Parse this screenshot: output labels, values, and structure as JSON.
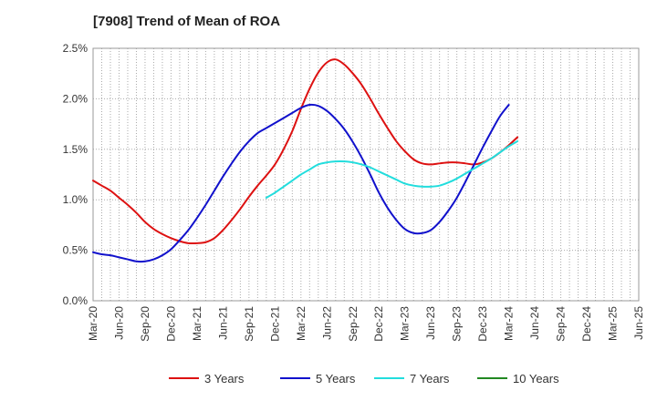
{
  "chart_data": {
    "type": "line",
    "title": "[7908]  Trend of Mean of ROA",
    "xlabel": "",
    "ylabel": "",
    "ylim": [
      0,
      2.5
    ],
    "y_ticks": [
      "0.0%",
      "0.5%",
      "1.0%",
      "1.5%",
      "2.0%",
      "2.5%"
    ],
    "x_tick_labels": [
      "Mar-20",
      "Jun-20",
      "Sep-20",
      "Dec-20",
      "Mar-21",
      "Jun-21",
      "Sep-21",
      "Dec-21",
      "Mar-22",
      "Jun-22",
      "Sep-22",
      "Dec-22",
      "Mar-23",
      "Jun-23",
      "Sep-23",
      "Dec-23",
      "Mar-24",
      "Jun-24",
      "Sep-24",
      "Dec-24",
      "Mar-25",
      "Jun-25"
    ],
    "grid": true,
    "legend_position": "bottom",
    "series": [
      {
        "name": "3 Years",
        "color": "#dd1111",
        "start_index": 0,
        "values": [
          1.19,
          1.14,
          1.09,
          1.02,
          0.95,
          0.87,
          0.78,
          0.71,
          0.66,
          0.62,
          0.59,
          0.57,
          0.57,
          0.58,
          0.62,
          0.7,
          0.8,
          0.91,
          1.03,
          1.14,
          1.24,
          1.35,
          1.5,
          1.68,
          1.9,
          2.1,
          2.26,
          2.36,
          2.39,
          2.34,
          2.25,
          2.14,
          2.0,
          1.85,
          1.71,
          1.58,
          1.48,
          1.4,
          1.36,
          1.35,
          1.36,
          1.37,
          1.37,
          1.36,
          1.35,
          1.37,
          1.41,
          1.47,
          1.54,
          1.62
        ]
      },
      {
        "name": "5 Years",
        "color": "#1111cc",
        "start_index": 0,
        "values": [
          0.48,
          0.46,
          0.45,
          0.43,
          0.41,
          0.39,
          0.39,
          0.41,
          0.45,
          0.51,
          0.6,
          0.7,
          0.82,
          0.95,
          1.09,
          1.23,
          1.36,
          1.48,
          1.58,
          1.66,
          1.71,
          1.76,
          1.81,
          1.86,
          1.91,
          1.94,
          1.93,
          1.88,
          1.8,
          1.7,
          1.57,
          1.42,
          1.25,
          1.07,
          0.92,
          0.8,
          0.71,
          0.67,
          0.67,
          0.7,
          0.78,
          0.89,
          1.02,
          1.18,
          1.35,
          1.52,
          1.68,
          1.83,
          1.94
        ]
      },
      {
        "name": "7 Years",
        "color": "#22dddd",
        "start_index": 20,
        "values": [
          1.02,
          1.07,
          1.13,
          1.19,
          1.25,
          1.3,
          1.35,
          1.37,
          1.38,
          1.38,
          1.37,
          1.35,
          1.32,
          1.28,
          1.24,
          1.2,
          1.16,
          1.14,
          1.13,
          1.13,
          1.14,
          1.17,
          1.21,
          1.26,
          1.31,
          1.36,
          1.41,
          1.47,
          1.53,
          1.58
        ]
      },
      {
        "name": "10 Years",
        "color": "#228822",
        "start_index": 0,
        "values": []
      }
    ]
  }
}
